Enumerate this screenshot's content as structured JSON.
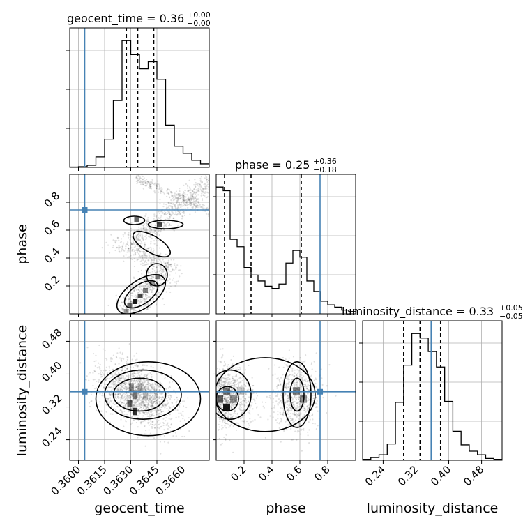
{
  "chart_data": {
    "type": "corner",
    "parameters": [
      "geocent_time",
      "phase",
      "luminosity_distance"
    ],
    "truths": {
      "geocent_time": 0.36036,
      "phase": 0.745,
      "luminosity_distance": 0.357
    },
    "titles": {
      "geocent_time": {
        "text": "geocent_time = 0.36",
        "plus": "+0.00",
        "minus": "−0.00"
      },
      "phase": {
        "text": "phase = 0.25",
        "plus": "+0.36",
        "minus": "−0.18"
      },
      "luminosity_distance": {
        "text": "luminosity_distance = 0.33",
        "plus": "+0.05",
        "minus": "−0.05"
      }
    },
    "axes": {
      "geocent_time": {
        "range": [
          0.3595,
          0.3675
        ],
        "ticks": [
          0.36,
          0.3615,
          0.363,
          0.3645,
          0.366
        ],
        "tick_labels": [
          "0.3600",
          "0.3615",
          "0.3630",
          "0.3645",
          "0.3660"
        ],
        "label": "geocent_time"
      },
      "phase": {
        "range": [
          0.0,
          1.0
        ],
        "ticks": [
          0.2,
          0.4,
          0.6,
          0.8
        ],
        "tick_labels": [
          "0.2",
          "0.4",
          "0.6",
          "0.8"
        ],
        "label": "phase"
      },
      "luminosity_distance": {
        "range": [
          0.19,
          0.53
        ],
        "ticks": [
          0.24,
          0.32,
          0.4,
          0.48
        ],
        "tick_labels": [
          "0.24",
          "0.32",
          "0.40",
          "0.48"
        ],
        "label": "luminosity_distance"
      }
    },
    "quantiles": {
      "geocent_time": [
        0.36275,
        0.3634,
        0.36432
      ],
      "phase": [
        0.06,
        0.25,
        0.61
      ],
      "luminosity_distance": [
        0.29,
        0.33,
        0.38
      ]
    },
    "histograms": {
      "geocent_time": {
        "edges": [
          0.3595,
          0.36,
          0.3605,
          0.361,
          0.3615,
          0.362,
          0.3625,
          0.363,
          0.3635,
          0.364,
          0.3645,
          0.365,
          0.3655,
          0.366,
          0.3665,
          0.367,
          0.3675
        ],
        "counts": [
          0.5,
          1,
          3,
          15,
          40,
          95,
          180,
          160,
          140,
          150,
          125,
          60,
          30,
          20,
          10,
          5
        ]
      },
      "phase": {
        "edges": [
          0.0,
          0.05,
          0.1,
          0.15,
          0.2,
          0.25,
          0.3,
          0.35,
          0.4,
          0.45,
          0.5,
          0.55,
          0.6,
          0.65,
          0.7,
          0.75,
          0.8,
          0.85,
          0.9,
          0.95,
          1.0
        ],
        "counts": [
          170,
          165,
          100,
          90,
          62,
          52,
          44,
          37,
          34,
          40,
          68,
          85,
          76,
          44,
          30,
          17,
          12,
          9,
          5,
          3
        ]
      },
      "luminosity_distance": {
        "edges": [
          0.19,
          0.21,
          0.23,
          0.25,
          0.27,
          0.29,
          0.31,
          0.33,
          0.35,
          0.37,
          0.39,
          0.41,
          0.43,
          0.45,
          0.47,
          0.49,
          0.51,
          0.53
        ],
        "counts": [
          1,
          3,
          6,
          18,
          64,
          105,
          140,
          135,
          120,
          103,
          65,
          32,
          17,
          10,
          6,
          2,
          1
        ]
      }
    }
  }
}
